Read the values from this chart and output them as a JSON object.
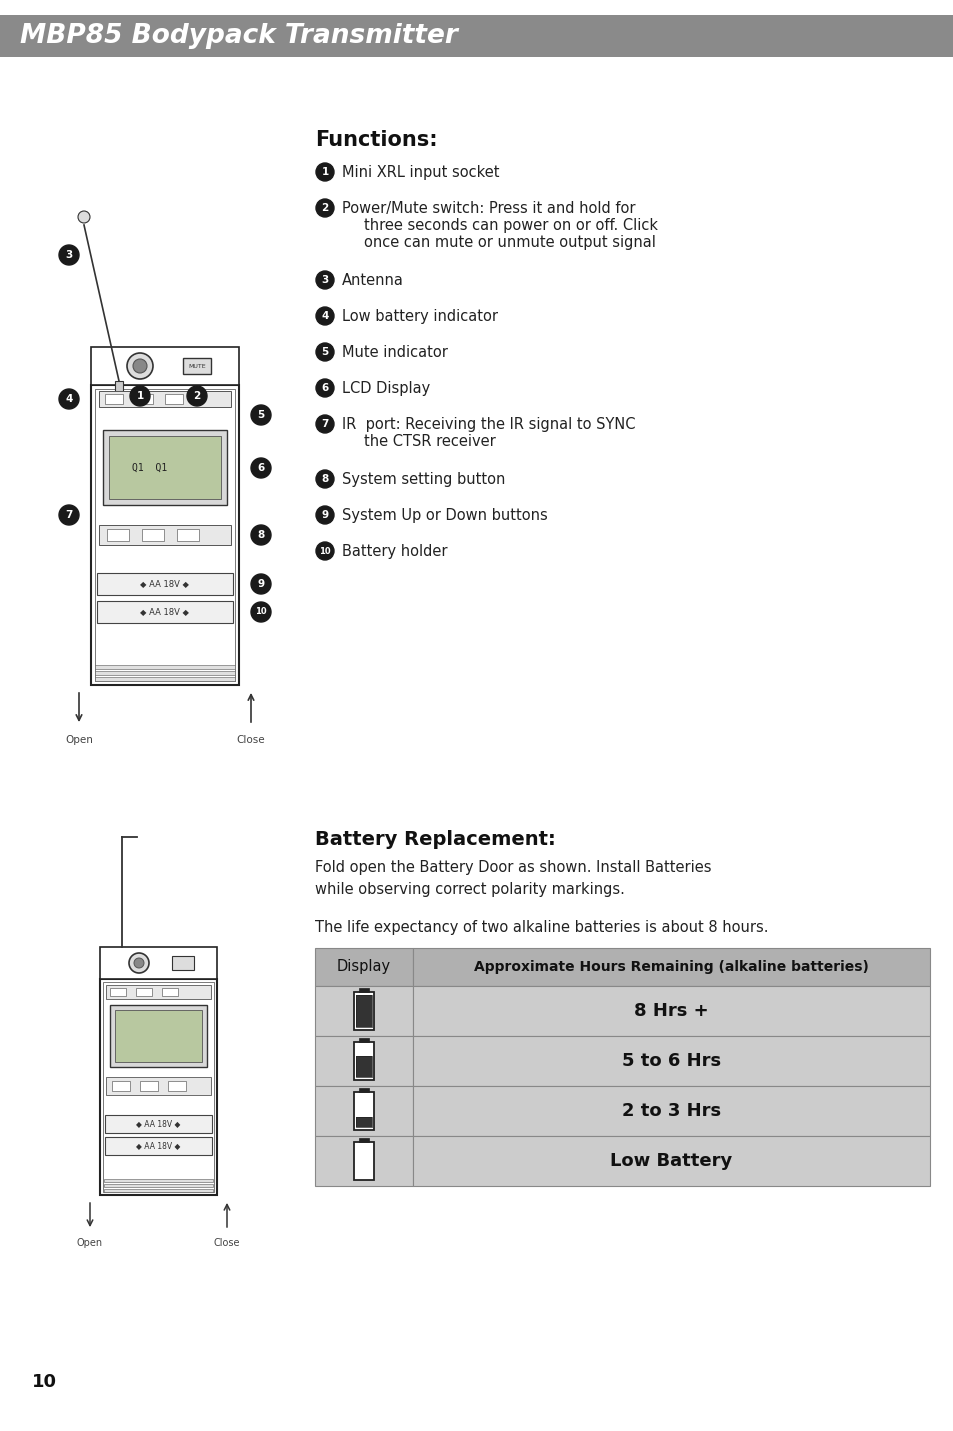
{
  "title": "MBP85 Bodypack Transmitter",
  "title_bg": "#8a8a8a",
  "title_color": "#ffffff",
  "page_bg": "#ffffff",
  "page_number": "10",
  "functions_title": "Functions:",
  "functions_items": [
    {
      "num": "1",
      "text": "Mini XRL input socket",
      "multiline": false
    },
    {
      "num": "2",
      "text": "Power/Mute switch: Press it and hold for\nthree seconds can power on or off. Click\nonce can mute or unmute output signal",
      "multiline": true
    },
    {
      "num": "3",
      "text": "Antenna",
      "multiline": false
    },
    {
      "num": "4",
      "text": "Low battery indicator",
      "multiline": false
    },
    {
      "num": "5",
      "text": "Mute indicator",
      "multiline": false
    },
    {
      "num": "6",
      "text": "LCD Display",
      "multiline": false
    },
    {
      "num": "7",
      "text": "IR  port: Receiving the IR signal to SYNC\nthe CTSR receiver",
      "multiline": true
    },
    {
      "num": "8",
      "text": "System setting button",
      "multiline": false
    },
    {
      "num": "9",
      "text": "System Up or Down buttons",
      "multiline": false
    },
    {
      "num": "10",
      "text": "Battery holder",
      "multiline": false
    }
  ],
  "battery_title": "Battery Replacement:",
  "battery_desc1": "Fold open the Battery Door as shown. Install Batteries\nwhile observing correct polarity markings.",
  "battery_desc2": "The life expectancy of two alkaline batteries is about 8 hours.",
  "table_header": [
    "Display",
    "Approximate Hours Remaining (alkaline batteries)"
  ],
  "table_header_bg": "#b0b0b0",
  "table_row_bg": "#cccccc",
  "table_rows": [
    {
      "label": "8 Hrs +",
      "fill_level": 1.0
    },
    {
      "label": "5 to 6 Hrs",
      "fill_level": 0.65
    },
    {
      "label": "2 to 3 Hrs",
      "fill_level": 0.3
    },
    {
      "label": "Low Battery",
      "fill_level": 0.0
    }
  ],
  "table_border_color": "#888888"
}
